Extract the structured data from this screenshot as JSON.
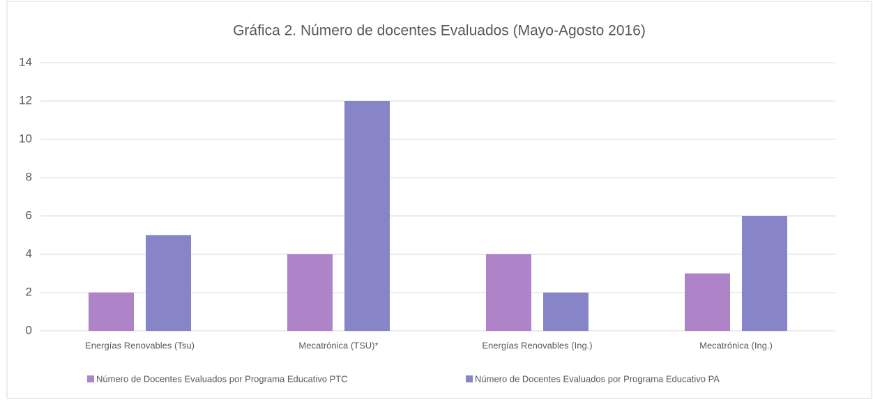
{
  "chart_data": {
    "type": "bar",
    "title": "Gráfica 2. Número de docentes Evaluados  (Mayo-Agosto 2016)",
    "categories": [
      "Energías  Renovables  (Tsu)",
      "Mecatrónica (TSU)*",
      "Energías Renovables (Ing.)",
      "Mecatrónica (Ing.)"
    ],
    "series": [
      {
        "name": "Número de Docentes Evaluados  por Programa Educativo  PTC",
        "color": "#ae83c7",
        "values": [
          2,
          4,
          4,
          3
        ]
      },
      {
        "name": "Número de Docentes Evaluados  por Programa Educativo  PA",
        "color": "#8884c8",
        "values": [
          5,
          12,
          2,
          6
        ]
      }
    ],
    "ylim": [
      0,
      14
    ],
    "yticks": [
      0,
      2,
      4,
      6,
      8,
      10,
      12,
      14
    ],
    "grid": true,
    "legend": "bottom"
  }
}
